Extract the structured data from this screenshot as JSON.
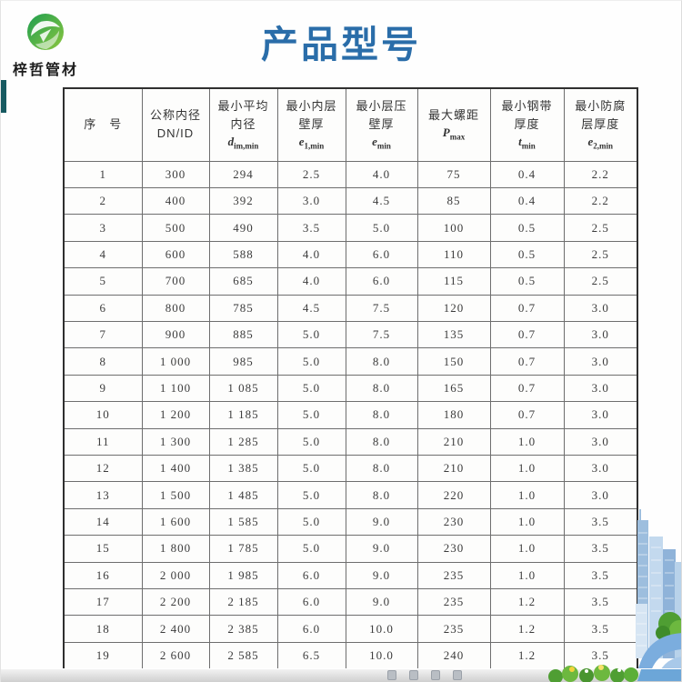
{
  "page": {
    "title": "产品型号"
  },
  "logo": {
    "company": "梓哲管材"
  },
  "colors": {
    "title_blue": "#2a6da9",
    "logo_green_dark": "#1e9e50",
    "logo_green_light": "#8cc63f",
    "accent_teal": "#175a61",
    "table_border": "#2f2f2f",
    "table_grid": "#6e6e6e"
  },
  "icons": {
    "logo": "green-leaf-sphere-icon",
    "bottom_right": "city-buildings-illustration",
    "bottom_strip": "taskbar-strip",
    "flowers": "green-flowers-decoration"
  },
  "table": {
    "headers": [
      {
        "title": "序　号"
      },
      {
        "title": "公称内径",
        "line2": "DN/ID"
      },
      {
        "title": "最小平均",
        "line2": "内径",
        "sym": "d",
        "sub": "im,min"
      },
      {
        "title": "最小内层",
        "line2": "壁厚",
        "sym": "e",
        "sub": "1,min"
      },
      {
        "title": "最小层压",
        "line2": "壁厚",
        "sym": "e",
        "sub": "min"
      },
      {
        "title": "最大螺距",
        "sym": "P",
        "sub": "max"
      },
      {
        "title": "最小钢带",
        "line2": "厚度",
        "sym": "t",
        "sub": "min"
      },
      {
        "title": "最小防腐",
        "line2": "层厚度",
        "sym": "e",
        "sub": "2,min"
      }
    ],
    "rows": [
      [
        "1",
        "300",
        "294",
        "2.5",
        "4.0",
        "75",
        "0.4",
        "2.2"
      ],
      [
        "2",
        "400",
        "392",
        "3.0",
        "4.5",
        "85",
        "0.4",
        "2.2"
      ],
      [
        "3",
        "500",
        "490",
        "3.5",
        "5.0",
        "100",
        "0.5",
        "2.5"
      ],
      [
        "4",
        "600",
        "588",
        "4.0",
        "6.0",
        "110",
        "0.5",
        "2.5"
      ],
      [
        "5",
        "700",
        "685",
        "4.0",
        "6.0",
        "115",
        "0.5",
        "2.5"
      ],
      [
        "6",
        "800",
        "785",
        "4.5",
        "7.5",
        "120",
        "0.7",
        "3.0"
      ],
      [
        "7",
        "900",
        "885",
        "5.0",
        "7.5",
        "135",
        "0.7",
        "3.0"
      ],
      [
        "8",
        "1 000",
        "985",
        "5.0",
        "8.0",
        "150",
        "0.7",
        "3.0"
      ],
      [
        "9",
        "1 100",
        "1 085",
        "5.0",
        "8.0",
        "165",
        "0.7",
        "3.0"
      ],
      [
        "10",
        "1 200",
        "1 185",
        "5.0",
        "8.0",
        "180",
        "0.7",
        "3.0"
      ],
      [
        "11",
        "1 300",
        "1 285",
        "5.0",
        "8.0",
        "210",
        "1.0",
        "3.0"
      ],
      [
        "12",
        "1 400",
        "1 385",
        "5.0",
        "8.0",
        "210",
        "1.0",
        "3.0"
      ],
      [
        "13",
        "1 500",
        "1 485",
        "5.0",
        "8.0",
        "220",
        "1.0",
        "3.0"
      ],
      [
        "14",
        "1 600",
        "1 585",
        "5.0",
        "9.0",
        "230",
        "1.0",
        "3.5"
      ],
      [
        "15",
        "1 800",
        "1 785",
        "5.0",
        "9.0",
        "230",
        "1.0",
        "3.5"
      ],
      [
        "16",
        "2 000",
        "1 985",
        "6.0",
        "9.0",
        "235",
        "1.0",
        "3.5"
      ],
      [
        "17",
        "2 200",
        "2 185",
        "6.0",
        "9.0",
        "235",
        "1.2",
        "3.5"
      ],
      [
        "18",
        "2 400",
        "2 385",
        "6.0",
        "10.0",
        "235",
        "1.2",
        "3.5"
      ],
      [
        "19",
        "2 600",
        "2 585",
        "6.5",
        "10.0",
        "240",
        "1.2",
        "3.5"
      ]
    ]
  }
}
